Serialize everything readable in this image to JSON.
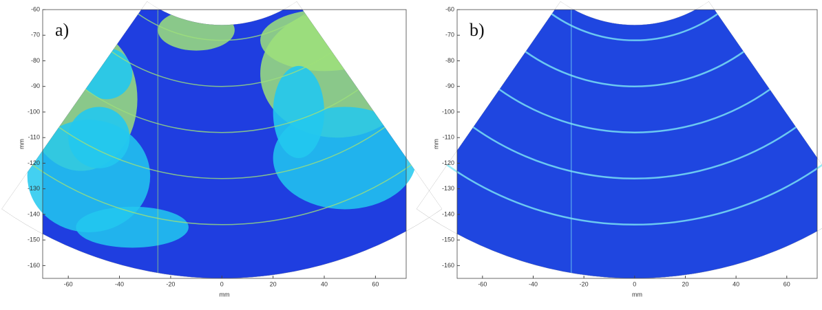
{
  "chart_data": [
    {
      "type": "image",
      "annotation": "a)",
      "xlabel": "mm",
      "ylabel": "mm",
      "xlim": [
        -70,
        72
      ],
      "ylim": [
        -165,
        -60
      ],
      "xticks": [
        -60,
        -40,
        -20,
        0,
        20,
        40,
        60
      ],
      "yticks": [
        -60,
        -70,
        -80,
        -90,
        -100,
        -110,
        -120,
        -130,
        -140,
        -150,
        -160
      ],
      "colors": [
        "#1f3ee0",
        "#22c8ee",
        "#9ee07a"
      ]
    },
    {
      "type": "image",
      "annotation": "b)",
      "xlabel": "mm",
      "ylabel": "mm",
      "xlim": [
        -70,
        72
      ],
      "ylim": [
        -165,
        -60
      ],
      "xticks": [
        -60,
        -40,
        -20,
        0,
        20,
        40,
        60
      ],
      "yticks": [
        -60,
        -70,
        -80,
        -90,
        -100,
        -110,
        -120,
        -130,
        -140,
        -150,
        -160
      ],
      "colors": [
        "#1730d8",
        "#2f6ff0",
        "#7ee8f5"
      ]
    }
  ]
}
